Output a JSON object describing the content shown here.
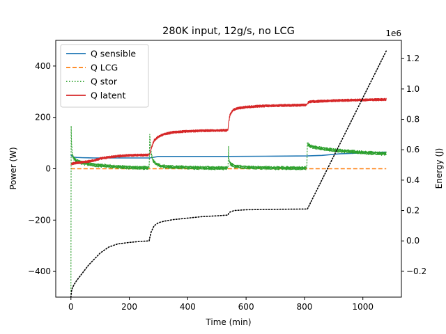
{
  "chart_data": {
    "type": "line",
    "title": "280K input, 12g/s, no LCG",
    "xlabel": "Time (min)",
    "ylabel": "Power (W)",
    "y2label": "Energy (J)",
    "y2_offset_label": "1e6",
    "xlim": [
      -52,
      1132
    ],
    "ylim": [
      -500,
      500
    ],
    "y2lim": [
      -0.37,
      1.32
    ],
    "x_ticks": [
      0,
      200,
      400,
      600,
      800,
      1000
    ],
    "y_ticks": [
      -400,
      -200,
      0,
      200,
      400
    ],
    "y2_ticks": [
      -0.2,
      0.0,
      0.2,
      0.4,
      0.6,
      0.8,
      1.0,
      1.2
    ],
    "x_tick_labels": [
      "0",
      "200",
      "400",
      "600",
      "800",
      "1000"
    ],
    "y_tick_labels": [
      "−400",
      "−200",
      "0",
      "200",
      "400"
    ],
    "y2_tick_labels": [
      "−0.2",
      "0.0",
      "0.2",
      "0.4",
      "0.6",
      "0.8",
      "1.0",
      "1.2"
    ],
    "grid": false,
    "legend_position": "top-left",
    "series": [
      {
        "name": "Q sensible",
        "color": "#1f77b4",
        "style": "solid",
        "axis": "left",
        "x": [
          0,
          1,
          5,
          10,
          20,
          40,
          80,
          150,
          270,
          300,
          540,
          700,
          810,
          860,
          920,
          1000,
          1080
        ],
        "y": [
          55,
          52,
          48,
          45,
          44,
          43,
          42,
          42,
          42,
          48,
          48,
          49,
          50,
          52,
          58,
          62,
          65
        ]
      },
      {
        "name": "Q LCG",
        "color": "#ff7f0e",
        "style": "dashed",
        "axis": "left",
        "x": [
          0,
          1080
        ],
        "y": [
          0,
          0
        ]
      },
      {
        "name": "Q stor",
        "color": "#2ca02c",
        "style": "dotted",
        "axis": "left",
        "noise": 8,
        "x": [
          0,
          0.5,
          1,
          2,
          5,
          10,
          20,
          40,
          80,
          150,
          200,
          268,
          270,
          272,
          275,
          280,
          290,
          310,
          350,
          450,
          538,
          540,
          541,
          545,
          560,
          600,
          700,
          808,
          810,
          812,
          820,
          850,
          900,
          1000,
          1080
        ],
        "y": [
          -500,
          175,
          160,
          100,
          55,
          40,
          30,
          22,
          15,
          8,
          5,
          3,
          135,
          100,
          60,
          35,
          20,
          10,
          6,
          3,
          2,
          88,
          40,
          20,
          10,
          5,
          3,
          2,
          102,
          95,
          88,
          80,
          72,
          63,
          58
        ]
      },
      {
        "name": "Q latent",
        "color": "#d62728",
        "style": "solid",
        "axis": "left",
        "noise": 6,
        "x": [
          0,
          1,
          5,
          20,
          50,
          80,
          100,
          150,
          200,
          268,
          270,
          275,
          285,
          300,
          320,
          350,
          400,
          450,
          538,
          540,
          545,
          555,
          570,
          600,
          650,
          700,
          808,
          810,
          815,
          830,
          870,
          920,
          1000,
          1080
        ],
        "y": [
          15,
          18,
          20,
          23,
          27,
          32,
          40,
          48,
          52,
          54,
          55,
          80,
          110,
          125,
          135,
          142,
          146,
          148,
          150,
          180,
          210,
          228,
          235,
          240,
          244,
          246,
          248,
          255,
          260,
          262,
          264,
          266,
          268,
          270
        ]
      },
      {
        "name": "Energy",
        "color": "#000000",
        "style": "dotted",
        "axis": "right",
        "x": [
          0,
          2,
          5,
          10,
          20,
          40,
          60,
          80,
          100,
          130,
          160,
          200,
          240,
          268,
          270,
          275,
          285,
          300,
          320,
          350,
          400,
          450,
          500,
          538,
          540,
          545,
          560,
          600,
          700,
          808,
          810,
          1080
        ],
        "y": [
          -0.37,
          -0.33,
          -0.31,
          -0.29,
          -0.26,
          -0.21,
          -0.16,
          -0.12,
          -0.08,
          -0.04,
          -0.02,
          -0.01,
          -0.003,
          0.0,
          0.02,
          0.06,
          0.1,
          0.12,
          0.13,
          0.14,
          0.15,
          0.16,
          0.165,
          0.17,
          0.18,
          0.19,
          0.2,
          0.205,
          0.208,
          0.21,
          0.21,
          1.25
        ]
      }
    ]
  }
}
